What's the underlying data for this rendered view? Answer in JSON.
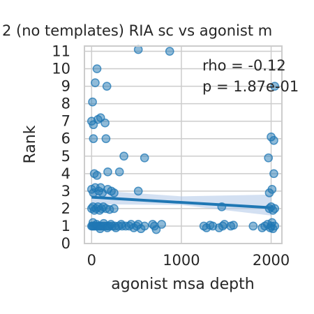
{
  "chart_data": {
    "type": "scatter",
    "title": "2 (no templates) RIA sc vs agonist m",
    "xlabel": "agonist msa depth",
    "ylabel": "Rank",
    "xlim": [
      -80,
      2120
    ],
    "ylim": [
      0,
      11.3
    ],
    "xticks": [
      0,
      1000,
      2000
    ],
    "yticks": [
      0,
      1,
      2,
      3,
      4,
      5,
      6,
      7,
      8,
      9,
      10,
      11
    ],
    "grid": true,
    "annotations": [
      "rho = -0.12",
      "p = 1.87e-01"
    ],
    "point_color": "#1f77b4",
    "line_color": "#1f77b4",
    "band_color": "#aec7e8",
    "regression": {
      "x": [
        0,
        2000
      ],
      "y": [
        2.65,
        2.05
      ]
    },
    "ci_band": {
      "x": [
        0,
        1000,
        2000
      ],
      "lower": [
        2.25,
        2.2,
        1.6
      ],
      "upper": [
        3.05,
        2.7,
        2.8
      ]
    },
    "points": [
      {
        "x": 0,
        "y": 1
      },
      {
        "x": 10,
        "y": 1
      },
      {
        "x": 20,
        "y": 1
      },
      {
        "x": 30,
        "y": 1
      },
      {
        "x": 45,
        "y": 1
      },
      {
        "x": 60,
        "y": 1
      },
      {
        "x": 75,
        "y": 1
      },
      {
        "x": 90,
        "y": 1
      },
      {
        "x": 105,
        "y": 1
      },
      {
        "x": 120,
        "y": 1
      },
      {
        "x": 140,
        "y": 1
      },
      {
        "x": 160,
        "y": 1
      },
      {
        "x": 180,
        "y": 1
      },
      {
        "x": 200,
        "y": 1
      },
      {
        "x": 230,
        "y": 1
      },
      {
        "x": 260,
        "y": 1
      },
      {
        "x": 300,
        "y": 1
      },
      {
        "x": 340,
        "y": 1
      },
      {
        "x": 380,
        "y": 1
      },
      {
        "x": 15,
        "y": 1.2
      },
      {
        "x": 55,
        "y": 1.1
      },
      {
        "x": 95,
        "y": 0.85
      },
      {
        "x": 135,
        "y": 1.15
      },
      {
        "x": 175,
        "y": 0.9
      },
      {
        "x": 215,
        "y": 1.1
      },
      {
        "x": 270,
        "y": 0.9
      },
      {
        "x": 330,
        "y": 1.1
      },
      {
        "x": 420,
        "y": 1
      },
      {
        "x": 440,
        "y": 1.1
      },
      {
        "x": 470,
        "y": 0.9
      },
      {
        "x": 500,
        "y": 1
      },
      {
        "x": 520,
        "y": 1.1
      },
      {
        "x": 550,
        "y": 0.85
      },
      {
        "x": 590,
        "y": 1
      },
      {
        "x": 680,
        "y": 1.1
      },
      {
        "x": 700,
        "y": 1
      },
      {
        "x": 720,
        "y": 0.8
      },
      {
        "x": 780,
        "y": 1.1
      },
      {
        "x": 1250,
        "y": 1
      },
      {
        "x": 1280,
        "y": 0.9
      },
      {
        "x": 1320,
        "y": 1.05
      },
      {
        "x": 1350,
        "y": 1
      },
      {
        "x": 1420,
        "y": 0.9
      },
      {
        "x": 1460,
        "y": 1
      },
      {
        "x": 1480,
        "y": 1.1
      },
      {
        "x": 1550,
        "y": 1
      },
      {
        "x": 1580,
        "y": 1.05
      },
      {
        "x": 1800,
        "y": 1
      },
      {
        "x": 1900,
        "y": 0.9
      },
      {
        "x": 1930,
        "y": 1
      },
      {
        "x": 1960,
        "y": 1.1
      },
      {
        "x": 1990,
        "y": 0.9
      },
      {
        "x": 2000,
        "y": 1
      },
      {
        "x": 2010,
        "y": 1.2
      },
      {
        "x": 2020,
        "y": 0.85
      },
      {
        "x": 2040,
        "y": 1
      },
      {
        "x": 0,
        "y": 2
      },
      {
        "x": 15,
        "y": 2.1
      },
      {
        "x": 30,
        "y": 1.9
      },
      {
        "x": 50,
        "y": 2
      },
      {
        "x": 70,
        "y": 2.1
      },
      {
        "x": 90,
        "y": 1.9
      },
      {
        "x": 110,
        "y": 2
      },
      {
        "x": 130,
        "y": 2.1
      },
      {
        "x": 160,
        "y": 2
      },
      {
        "x": 200,
        "y": 1.95
      },
      {
        "x": 250,
        "y": 2
      },
      {
        "x": 1450,
        "y": 2.1
      },
      {
        "x": 1980,
        "y": 2
      },
      {
        "x": 2000,
        "y": 2.1
      },
      {
        "x": 2020,
        "y": 1.9
      },
      {
        "x": 2040,
        "y": 2
      },
      {
        "x": 0,
        "y": 3.1
      },
      {
        "x": 20,
        "y": 2.9
      },
      {
        "x": 40,
        "y": 3.2
      },
      {
        "x": 80,
        "y": 3
      },
      {
        "x": 100,
        "y": 3.2
      },
      {
        "x": 120,
        "y": 2.9
      },
      {
        "x": 180,
        "y": 3.1
      },
      {
        "x": 220,
        "y": 3
      },
      {
        "x": 250,
        "y": 2.9
      },
      {
        "x": 520,
        "y": 3
      },
      {
        "x": 1980,
        "y": 2.9
      },
      {
        "x": 2010,
        "y": 3.1
      },
      {
        "x": 30,
        "y": 4
      },
      {
        "x": 60,
        "y": 3.9
      },
      {
        "x": 180,
        "y": 4.1
      },
      {
        "x": 310,
        "y": 4.1
      },
      {
        "x": 2030,
        "y": 4
      },
      {
        "x": 1970,
        "y": 4.9
      },
      {
        "x": 360,
        "y": 5
      },
      {
        "x": 590,
        "y": 4.9
      },
      {
        "x": 20,
        "y": 6
      },
      {
        "x": 160,
        "y": 6
      },
      {
        "x": 2000,
        "y": 6.1
      },
      {
        "x": 2030,
        "y": 5.9
      },
      {
        "x": 0,
        "y": 7
      },
      {
        "x": 20,
        "y": 6.8
      },
      {
        "x": 70,
        "y": 7.1
      },
      {
        "x": 100,
        "y": 7.2
      },
      {
        "x": 150,
        "y": 6.9
      },
      {
        "x": 10,
        "y": 8.1
      },
      {
        "x": 40,
        "y": 9.2
      },
      {
        "x": 170,
        "y": 9
      },
      {
        "x": 2040,
        "y": 9
      },
      {
        "x": 60,
        "y": 10
      },
      {
        "x": 520,
        "y": 11.1
      },
      {
        "x": 870,
        "y": 11
      }
    ]
  }
}
